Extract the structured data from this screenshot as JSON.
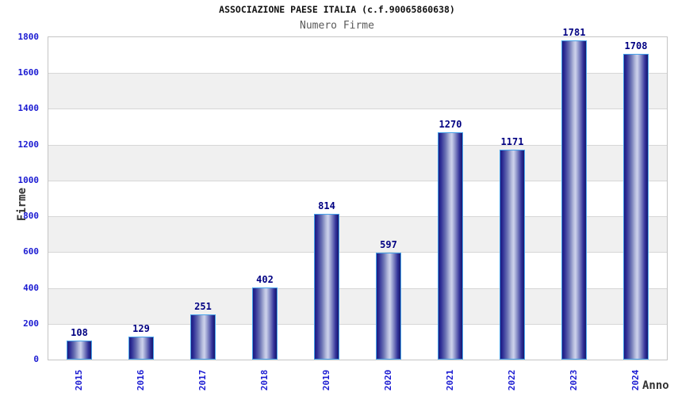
{
  "chart_data": {
    "type": "bar",
    "title": "ASSOCIAZIONE PAESE ITALIA (c.f.90065860638)",
    "subtitle": "Numero Firme",
    "xlabel": "Anno",
    "ylabel": "Firme",
    "categories": [
      "2015",
      "2016",
      "2017",
      "2018",
      "2019",
      "2020",
      "2021",
      "2022",
      "2023",
      "2024"
    ],
    "values": [
      108,
      129,
      251,
      402,
      814,
      597,
      1270,
      1171,
      1781,
      1708
    ],
    "ylim": [
      0,
      1800
    ],
    "ytick_step": 200,
    "yticks": [
      0,
      200,
      400,
      600,
      800,
      1000,
      1200,
      1400,
      1600,
      1800
    ],
    "grid": true,
    "legend": "none",
    "band_fill": "alternating-horizontal"
  },
  "colors": {
    "title": "#111111",
    "subtitle": "#5a5a5a",
    "axis_title": "#333333",
    "tick_label": "#1a1ad2",
    "value_label": "#000082",
    "grid_line": "#d6d6d6",
    "plot_border": "#c4c4c4",
    "band_white": "#ffffff",
    "band_gray": "#f0f0f0",
    "bar_border": "#46a2ea",
    "bar_gradient": [
      "#1b1b80",
      "#2e2e96",
      "#6c74b4",
      "#b8bede",
      "#cdd2ec",
      "#8a90c8",
      "#33339a",
      "#16166e"
    ]
  }
}
